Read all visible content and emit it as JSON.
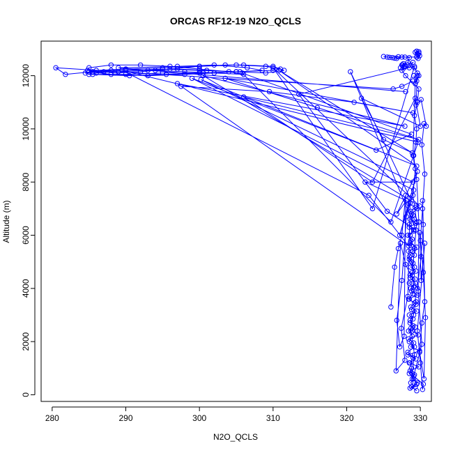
{
  "chart_data": {
    "type": "line",
    "title": "ORCAS RF12-19 N2O_QCLS",
    "xlabel": "N2O_QCLS",
    "ylabel": "Altitude (m)",
    "xlim": [
      278.5,
      331.5
    ],
    "ylim": [
      -250,
      13300
    ],
    "xticks": [
      280,
      290,
      300,
      310,
      320,
      330
    ],
    "yticks": [
      0,
      2000,
      4000,
      6000,
      8000,
      10000,
      12000
    ],
    "grid": false,
    "legend": "none",
    "series_color": "#0000ff",
    "marker": "open-circle",
    "series": [
      {
        "x": [
          329.5,
          328.8,
          329.6,
          328.9,
          329.2,
          328.6,
          329.8,
          328.5,
          329.4,
          328.3,
          329.9,
          328.7,
          329.1,
          328.4,
          329.7,
          328.9,
          329.3,
          328.6,
          329.0,
          328.5,
          329.5,
          328.7,
          329.2,
          328.4,
          329.6,
          328.8,
          329.1,
          328.5,
          329.3,
          328.6,
          329.4,
          328.7,
          329.0,
          328.5,
          329.2,
          328.4,
          329.5,
          328.6,
          328.9,
          328.3,
          329.1,
          328.5,
          329.4,
          328.6,
          329.0,
          328.7,
          329.3,
          328.4,
          329.6,
          328.8,
          329.2,
          328.5,
          329.1,
          328.6,
          328.7,
          328.8,
          329.0,
          328.5,
          328.8,
          329.2,
          328.9,
          328.6,
          329.3,
          328.7,
          329.0,
          328.5,
          329.4,
          328.8,
          329.1,
          328.6,
          329.0,
          328.4,
          328.9,
          328.5,
          329.2,
          328.3,
          329.0,
          328.6,
          328.8,
          328.5,
          329.1,
          328.7,
          329.3,
          328.6,
          329.5,
          328.9,
          329.2,
          328.7,
          329.4,
          328.9,
          329.2,
          329.5,
          329.0,
          329.3,
          329.1,
          329.4,
          329.5,
          329.2,
          329.6,
          329.8,
          328.0,
          327.5,
          327.8,
          327.6,
          328.5,
          329.0,
          328.2,
          327.3,
          327.9,
          327.5,
          327.7,
          327.9
        ],
        "y": [
          150,
          300,
          450,
          600,
          750,
          900,
          1050,
          1200,
          1350,
          1500,
          1650,
          1800,
          1950,
          2100,
          2250,
          2400,
          2550,
          2700,
          2850,
          3000,
          3150,
          3300,
          3450,
          3600,
          3750,
          3900,
          4050,
          4200,
          4350,
          4500,
          4650,
          4800,
          4950,
          5100,
          5250,
          5400,
          5550,
          5700,
          5850,
          6000,
          6150,
          6300,
          6450,
          6600,
          6750,
          6900,
          7050,
          7200,
          7000,
          6800,
          6600,
          6400,
          6200,
          6000,
          5800,
          5600,
          5400,
          5200,
          5000,
          4800,
          4600,
          4400,
          4200,
          4000,
          3800,
          3600,
          3400,
          3200,
          3000,
          2800,
          2600,
          2400,
          2200,
          2000,
          1800,
          1600,
          1400,
          1200,
          1000,
          800,
          600,
          450,
          300,
          250,
          400,
          800,
          1500,
          2500,
          3500,
          4500,
          5500,
          6500,
          7500,
          8500,
          9000,
          9500,
          10000,
          10500,
          11000,
          11500,
          12000,
          12200,
          12300,
          12400,
          12300,
          12500,
          12400,
          12300,
          12350,
          12400,
          12450,
          12380
        ]
      },
      {
        "x": [
          329.5,
          329.7,
          329.8,
          329.8,
          329.5,
          329.3,
          329.6,
          329.9,
          329.7,
          329.5,
          327.5,
          326.8,
          326.2,
          325.5,
          325.0,
          325.8,
          326.5,
          327.0,
          327.9,
          328.5,
          328.3,
          329.2,
          329.6,
          329.8,
          329.5,
          329.1
        ],
        "y": [
          12700,
          12800,
          12850,
          12900,
          12920,
          12880,
          12820,
          12750,
          12650,
          12700,
          12700,
          12650,
          12680,
          12700,
          12720,
          12690,
          12660,
          12710,
          12700,
          12680,
          12500,
          12300,
          12100,
          12000,
          11800,
          12000
        ]
      },
      {
        "x": [
          329.0,
          327.5,
          326.3,
          280.5,
          281.8,
          285.5,
          288.0,
          290.0,
          295.0,
          300.0,
          305.0,
          309.0,
          311.0,
          310.0,
          305.0,
          300.0,
          295.0,
          290.0,
          285.0,
          284.5,
          287.0,
          290.0,
          295.0,
          300.0,
          305.0,
          302.0,
          298.0,
          293.0,
          288.0,
          285.0,
          286.0,
          290.0,
          294.0,
          298.0,
          302.0,
          306.0,
          304.0,
          300.0,
          296.0,
          292.0,
          288.0,
          285.0,
          284.8,
          288.5,
          292.0,
          296.0,
          300.0,
          303.5,
          306.0,
          310.0,
          311.5,
          309.0,
          305.0,
          301.0,
          297.0,
          293.0,
          289.0,
          286.0,
          285.5,
          290.5,
          295.5,
          300.5,
          305.5,
          308.5,
          306.5,
          302.0,
          297.0,
          289.0,
          328.0
        ],
        "y": [
          11800,
          11600,
          11500,
          12300,
          12050,
          12150,
          12200,
          12250,
          12300,
          12350,
          12400,
          12350,
          12250,
          12200,
          12150,
          12100,
          12100,
          12050,
          12050,
          12100,
          12150,
          12200,
          12250,
          12200,
          12150,
          12100,
          12050,
          12000,
          12050,
          12150,
          12200,
          12250,
          12200,
          12150,
          12100,
          12050,
          12150,
          12250,
          12350,
          12400,
          12400,
          12300,
          12200,
          12100,
          12150,
          12250,
          12350,
          12400,
          12400,
          12350,
          12200,
          12100,
          12150,
          12200,
          12250,
          12200,
          12150,
          12100,
          12050,
          12000,
          12050,
          12100,
          12150,
          12200,
          12300,
          12400,
          12350,
          12300,
          11400
        ]
      },
      {
        "x": [
          297.5,
          309.5,
          321.0,
          329.0,
          303.5,
          316.0,
          329.8,
          306.0,
          323.5,
          329.3,
          330.0,
          322.0,
          325.0,
          328.9,
          310.8,
          329.5,
          300.2,
          329.0,
          322.5,
          328.1,
          326.8,
          329.6,
          327.2,
          329.1,
          299.0,
          324.0,
          328.8,
          305.8,
          326.0,
          329.7,
          289.5,
          323.0,
          328.4,
          297.0,
          327.9,
          300.5,
          329.9,
          310.0,
          323.5,
          329.2,
          313.5,
          325.5,
          329.4,
          320.5,
          328.6
        ],
        "y": [
          11600,
          11400,
          11000,
          10600,
          11900,
          10800,
          9600,
          11200,
          8000,
          11150,
          10100,
          11150,
          9600,
          9100,
          12200,
          8600,
          11850,
          8000,
          8000,
          7300,
          6800,
          8400,
          6000,
          7700,
          11900,
          9200,
          9800,
          12100,
          6500,
          9500,
          12200,
          7500,
          5600,
          11700,
          10100,
          12000,
          7100,
          12300,
          7000,
          12350,
          11300,
          6900,
          6200,
          12150,
          7400
        ]
      },
      {
        "x": [
          326.0,
          326.5,
          327.0,
          327.5,
          328.0,
          327.8,
          327.2,
          326.8,
          327.5,
          328.1,
          328.6,
          328.3,
          327.4,
          327.9,
          326.7,
          327.3,
          328.0,
          329.6,
          330.1,
          330.4,
          330.3,
          330.6,
          330.2,
          329.9,
          330.5,
          330.7,
          330.4,
          330.0,
          330.3,
          330.6,
          330.2,
          330.5,
          330.8,
          330.1,
          329.4,
          329.6,
          329.3,
          329.0,
          329.5,
          329.8,
          329.7,
          330.2,
          329.1,
          330.4,
          330.3,
          330.0,
          329.6,
          330.6,
          330.1,
          329.9
        ],
        "y": [
          3300,
          4800,
          5500,
          6000,
          7500,
          2200,
          1800,
          2800,
          4300,
          6700,
          7200,
          3700,
          2500,
          1300,
          900,
          5700,
          4900,
          4000,
          5200,
          6400,
          7300,
          3500,
          2700,
          1600,
          600,
          2900,
          4600,
          5800,
          7000,
          8300,
          9400,
          10200,
          10100,
          11100,
          10900,
          12000,
          11700,
          9000,
          8100,
          6500,
          3900,
          1900,
          700,
          400,
          200,
          1200,
          2400,
          5700,
          4300,
          6100
        ]
      }
    ]
  }
}
